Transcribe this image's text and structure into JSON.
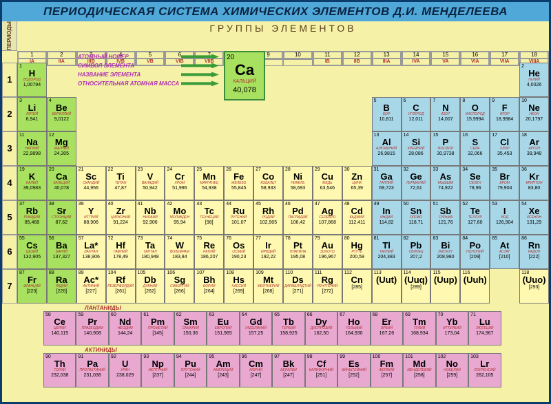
{
  "title": "ПЕРИОДИЧЕСКАЯ СИСТЕМА ХИМИЧЕСКИХ ЭЛЕМЕНТОВ Д.И. МЕНДЕЛЕЕВА",
  "subtitle": "ГРУППЫ ЭЛЕМЕНТОВ",
  "periods_label": "ПЕРИОДЫ",
  "columns": [
    "1",
    "2",
    "3",
    "4",
    "5",
    "6",
    "7",
    "8",
    "9",
    "10",
    "11",
    "12",
    "13",
    "14",
    "15",
    "16",
    "17",
    "18"
  ],
  "group_labels": [
    "IA",
    "IIA",
    "IIIB",
    "IVB",
    "VB",
    "VIB",
    "VIIB",
    "VIIIB",
    "",
    "",
    "IB",
    "IIB",
    "IIIA",
    "IVA",
    "VA",
    "VIA",
    "VIIA",
    "VIIIA"
  ],
  "periods": [
    "1",
    "2",
    "3",
    "4",
    "5",
    "6",
    "7"
  ],
  "legend": {
    "atomic_number": "АТОМНЫЙ НОМЕР",
    "symbol": "СИМВОЛ ЭЛЕМЕНТА",
    "name": "НАЗВАНИЕ ЭЛЕМЕНТА",
    "mass": "ОТНОСИТЕЛЬНАЯ АТОМНАЯ МАССА"
  },
  "sample": {
    "num": "20",
    "sym": "Ca",
    "name": "КАЛЬЦИЙ",
    "mass": "40,078"
  },
  "colors": {
    "green": "#a8e060",
    "yellow": "#fff8b0",
    "blue": "#a8d8e8",
    "pink": "#e8a8d0",
    "lgreen": "#c0e880"
  },
  "elements": [
    [
      {
        "n": "1",
        "s": "H",
        "nm": "ВОДОРОД",
        "m": "1,00794",
        "c": "green"
      },
      null,
      null,
      null,
      null,
      null,
      null,
      null,
      null,
      null,
      null,
      null,
      null,
      null,
      null,
      null,
      null,
      {
        "n": "2",
        "s": "He",
        "nm": "ГЕЛИЙ",
        "m": "4,0026",
        "c": "blue"
      }
    ],
    [
      {
        "n": "3",
        "s": "Li",
        "nm": "ЛИТИЙ",
        "m": "6,941",
        "c": "green"
      },
      {
        "n": "4",
        "s": "Be",
        "nm": "БЕРИЛЛИЙ",
        "m": "9,0122",
        "c": "green"
      },
      null,
      null,
      null,
      null,
      null,
      null,
      null,
      null,
      null,
      null,
      {
        "n": "5",
        "s": "B",
        "nm": "БОР",
        "m": "10,811",
        "c": "blue"
      },
      {
        "n": "6",
        "s": "C",
        "nm": "УГЛЕРОД",
        "m": "12,011",
        "c": "blue"
      },
      {
        "n": "7",
        "s": "N",
        "nm": "АЗОТ",
        "m": "14,007",
        "c": "blue"
      },
      {
        "n": "8",
        "s": "O",
        "nm": "КИСЛОРОД",
        "m": "15,9994",
        "c": "blue"
      },
      {
        "n": "9",
        "s": "F",
        "nm": "ФТОР",
        "m": "18,9984",
        "c": "blue"
      },
      {
        "n": "10",
        "s": "Ne",
        "nm": "НЕОН",
        "m": "20,1797",
        "c": "blue"
      }
    ],
    [
      {
        "n": "11",
        "s": "Na",
        "nm": "НАТРИЙ",
        "m": "22,9898",
        "c": "green"
      },
      {
        "n": "12",
        "s": "Mg",
        "nm": "МАГНИЙ",
        "m": "24,305",
        "c": "green"
      },
      null,
      null,
      null,
      null,
      null,
      null,
      null,
      null,
      null,
      null,
      {
        "n": "13",
        "s": "Al",
        "nm": "АЛЮМИНИЙ",
        "m": "26,9815",
        "c": "blue"
      },
      {
        "n": "14",
        "s": "Si",
        "nm": "КРЕМНИЙ",
        "m": "28,086",
        "c": "blue"
      },
      {
        "n": "15",
        "s": "P",
        "nm": "ФОСФОР",
        "m": "30,9738",
        "c": "blue"
      },
      {
        "n": "16",
        "s": "S",
        "nm": "СЕРА",
        "m": "32,066",
        "c": "blue"
      },
      {
        "n": "17",
        "s": "Cl",
        "nm": "ХЛОР",
        "m": "35,453",
        "c": "blue"
      },
      {
        "n": "18",
        "s": "Ar",
        "nm": "АРГОН",
        "m": "39,948",
        "c": "blue"
      }
    ],
    [
      {
        "n": "19",
        "s": "K",
        "nm": "КАЛИЙ",
        "m": "39,0983",
        "c": "green"
      },
      {
        "n": "20",
        "s": "Ca",
        "nm": "КАЛЬЦИЙ",
        "m": "40,078",
        "c": "green"
      },
      {
        "n": "21",
        "s": "Sc",
        "nm": "СКАНДИЙ",
        "m": "44,956",
        "c": "yellow"
      },
      {
        "n": "22",
        "s": "Ti",
        "nm": "ТИТАН",
        "m": "47,87",
        "c": "yellow"
      },
      {
        "n": "23",
        "s": "V",
        "nm": "ВАНАДИЙ",
        "m": "50,942",
        "c": "yellow"
      },
      {
        "n": "24",
        "s": "Cr",
        "nm": "ХРОМ",
        "m": "51,996",
        "c": "yellow"
      },
      {
        "n": "25",
        "s": "Mn",
        "nm": "МАРГАНЕЦ",
        "m": "54,938",
        "c": "yellow"
      },
      {
        "n": "26",
        "s": "Fe",
        "nm": "ЖЕЛЕЗО",
        "m": "55,845",
        "c": "yellow"
      },
      {
        "n": "27",
        "s": "Co",
        "nm": "КОБАЛЬТ",
        "m": "58,933",
        "c": "yellow"
      },
      {
        "n": "28",
        "s": "Ni",
        "nm": "НИКЕЛЬ",
        "m": "58,693",
        "c": "yellow"
      },
      {
        "n": "29",
        "s": "Cu",
        "nm": "МЕДЬ",
        "m": "63,546",
        "c": "yellow"
      },
      {
        "n": "30",
        "s": "Zn",
        "nm": "ЦИНК",
        "m": "65,39",
        "c": "yellow"
      },
      {
        "n": "31",
        "s": "Ga",
        "nm": "ГАЛЛИЙ",
        "m": "69,723",
        "c": "blue"
      },
      {
        "n": "32",
        "s": "Ge",
        "nm": "ГЕРМАНИЙ",
        "m": "72,61",
        "c": "blue"
      },
      {
        "n": "33",
        "s": "As",
        "nm": "МЫШЬЯК",
        "m": "74,922",
        "c": "blue"
      },
      {
        "n": "34",
        "s": "Se",
        "nm": "СЕЛЕН",
        "m": "78,96",
        "c": "blue"
      },
      {
        "n": "35",
        "s": "Br",
        "nm": "БРОМ",
        "m": "79,904",
        "c": "blue"
      },
      {
        "n": "36",
        "s": "Kr",
        "nm": "КРИПТОН",
        "m": "83,80",
        "c": "blue"
      }
    ],
    [
      {
        "n": "37",
        "s": "Rb",
        "nm": "РУБИДИЙ",
        "m": "85,468",
        "c": "green"
      },
      {
        "n": "38",
        "s": "Sr",
        "nm": "СТРОНЦИЙ",
        "m": "87,62",
        "c": "green"
      },
      {
        "n": "39",
        "s": "Y",
        "nm": "ИТТРИЙ",
        "m": "88,906",
        "c": "yellow"
      },
      {
        "n": "40",
        "s": "Zr",
        "nm": "ЦИРКОНИЙ",
        "m": "91,224",
        "c": "yellow"
      },
      {
        "n": "41",
        "s": "Nb",
        "nm": "НИОБИЙ",
        "m": "92,906",
        "c": "yellow"
      },
      {
        "n": "42",
        "s": "Mo",
        "nm": "МОЛИБДЕН",
        "m": "95,94",
        "c": "yellow"
      },
      {
        "n": "43",
        "s": "Tc",
        "nm": "ТЕХНЕЦИЙ",
        "m": "[98]",
        "c": "yellow"
      },
      {
        "n": "44",
        "s": "Ru",
        "nm": "РУТЕНИЙ",
        "m": "101,07",
        "c": "yellow"
      },
      {
        "n": "45",
        "s": "Rh",
        "nm": "РОДИЙ",
        "m": "102,905",
        "c": "yellow"
      },
      {
        "n": "46",
        "s": "Pd",
        "nm": "ПАЛЛАДИЙ",
        "m": "106,42",
        "c": "yellow"
      },
      {
        "n": "47",
        "s": "Ag",
        "nm": "СЕРЕБРО",
        "m": "107,868",
        "c": "yellow"
      },
      {
        "n": "48",
        "s": "Cd",
        "nm": "КАДМИЙ",
        "m": "112,411",
        "c": "yellow"
      },
      {
        "n": "49",
        "s": "In",
        "nm": "ИНДИЙ",
        "m": "114,82",
        "c": "blue"
      },
      {
        "n": "50",
        "s": "Sn",
        "nm": "ОЛОВО",
        "m": "118,71",
        "c": "blue"
      },
      {
        "n": "51",
        "s": "Sb",
        "nm": "СУРЬМА",
        "m": "121,76",
        "c": "blue"
      },
      {
        "n": "52",
        "s": "Te",
        "nm": "ТЕЛЛУР",
        "m": "127,60",
        "c": "blue"
      },
      {
        "n": "53",
        "s": "I",
        "nm": "ЙОД",
        "m": "126,904",
        "c": "blue"
      },
      {
        "n": "54",
        "s": "Xe",
        "nm": "КСЕНОН",
        "m": "131,29",
        "c": "blue"
      }
    ],
    [
      {
        "n": "55",
        "s": "Cs",
        "nm": "ЦЕЗИЙ",
        "m": "132,905",
        "c": "green"
      },
      {
        "n": "56",
        "s": "Ba",
        "nm": "БАРИЙ",
        "m": "137,327",
        "c": "green"
      },
      {
        "n": "57",
        "s": "La*",
        "nm": "ЛАНТАН",
        "m": "138,906",
        "c": "yellow"
      },
      {
        "n": "72",
        "s": "Hf",
        "nm": "ГАФНИЙ",
        "m": "178,49",
        "c": "yellow"
      },
      {
        "n": "73",
        "s": "Ta",
        "nm": "ТАНТАЛ",
        "m": "180,948",
        "c": "yellow"
      },
      {
        "n": "74",
        "s": "W",
        "nm": "ВОЛЬФРАМ",
        "m": "183,84",
        "c": "yellow"
      },
      {
        "n": "75",
        "s": "Re",
        "nm": "РЕНИЙ",
        "m": "186,207",
        "c": "yellow"
      },
      {
        "n": "76",
        "s": "Os",
        "nm": "ОСМИЙ",
        "m": "190,23",
        "c": "yellow"
      },
      {
        "n": "77",
        "s": "Ir",
        "nm": "ИРИДИЙ",
        "m": "192,22",
        "c": "yellow"
      },
      {
        "n": "78",
        "s": "Pt",
        "nm": "ПЛАТИНА",
        "m": "195,08",
        "c": "yellow"
      },
      {
        "n": "79",
        "s": "Au",
        "nm": "ЗОЛОТО",
        "m": "196,967",
        "c": "yellow"
      },
      {
        "n": "80",
        "s": "Hg",
        "nm": "РТУТЬ",
        "m": "200,59",
        "c": "yellow"
      },
      {
        "n": "81",
        "s": "Tl",
        "nm": "ТАЛЛИЙ",
        "m": "204,383",
        "c": "blue"
      },
      {
        "n": "82",
        "s": "Pb",
        "nm": "СВИНЕЦ",
        "m": "207,2",
        "c": "blue"
      },
      {
        "n": "83",
        "s": "Bi",
        "nm": "ВИСМУТ",
        "m": "208,980",
        "c": "blue"
      },
      {
        "n": "84",
        "s": "Po",
        "nm": "ПОЛОНИЙ",
        "m": "[209]",
        "c": "blue"
      },
      {
        "n": "85",
        "s": "At",
        "nm": "АСТАТ",
        "m": "[210]",
        "c": "blue"
      },
      {
        "n": "86",
        "s": "Rn",
        "nm": "РАДОН",
        "m": "[222]",
        "c": "blue"
      }
    ],
    [
      {
        "n": "87",
        "s": "Fr",
        "nm": "ФРАНЦИЙ",
        "m": "[223]",
        "c": "green"
      },
      {
        "n": "88",
        "s": "Ra",
        "nm": "РАДИЙ",
        "m": "[226]",
        "c": "green"
      },
      {
        "n": "89",
        "s": "Ac*",
        "nm": "АКТИНИЙ",
        "m": "[227]",
        "c": "yellow"
      },
      {
        "n": "104",
        "s": "Rf",
        "nm": "РЕЗЕРФОРДИЙ",
        "m": "[261]",
        "c": "yellow"
      },
      {
        "n": "105",
        "s": "Db",
        "nm": "ДУБНИЙ",
        "m": "[262]",
        "c": "yellow"
      },
      {
        "n": "106",
        "s": "Sg",
        "nm": "СИБОРГИЙ",
        "m": "[266]",
        "c": "yellow"
      },
      {
        "n": "107",
        "s": "Bh",
        "nm": "БОРИЙ",
        "m": "[264]",
        "c": "yellow"
      },
      {
        "n": "108",
        "s": "Hs",
        "nm": "ХАССИЙ",
        "m": "[269]",
        "c": "yellow"
      },
      {
        "n": "109",
        "s": "Mt",
        "nm": "МЕЙТНЕРИЙ",
        "m": "[268]",
        "c": "yellow"
      },
      {
        "n": "110",
        "s": "Ds",
        "nm": "ДАРМШТАДТИЙ",
        "m": "[271]",
        "c": "yellow"
      },
      {
        "n": "111",
        "s": "Rg",
        "nm": "РЕНТГЕНИЙ",
        "m": "[272]",
        "c": "yellow"
      },
      {
        "n": "112",
        "s": "Cn",
        "nm": "",
        "m": "[285]",
        "c": "yellow"
      },
      {
        "n": "113",
        "s": "(Uut)",
        "nm": "",
        "m": "",
        "c": "yellow"
      },
      {
        "n": "114",
        "s": "(Uuq)",
        "nm": "",
        "m": "[289]",
        "c": "yellow"
      },
      {
        "n": "115",
        "s": "(Uup)",
        "nm": "",
        "m": "",
        "c": "yellow"
      },
      {
        "n": "116",
        "s": "(Uuh)",
        "nm": "",
        "m": "",
        "c": "yellow"
      },
      null,
      {
        "n": "118",
        "s": "(Uuo)",
        "nm": "",
        "m": "[293]",
        "c": "yellow"
      }
    ]
  ],
  "lanthanides_label": "ЛАНТАНИДЫ",
  "lanthanides": [
    {
      "n": "58",
      "s": "Ce",
      "nm": "ЦЕРИЙ",
      "m": "140,115"
    },
    {
      "n": "59",
      "s": "Pr",
      "nm": "ПРАЗЕОДИМ",
      "m": "140,908"
    },
    {
      "n": "60",
      "s": "Nd",
      "nm": "НЕОДИМ",
      "m": "144,24"
    },
    {
      "n": "61",
      "s": "Pm",
      "nm": "ПРОМЕТИЙ",
      "m": "[145]"
    },
    {
      "n": "62",
      "s": "Sm",
      "nm": "САМАРИЙ",
      "m": "150,36"
    },
    {
      "n": "63",
      "s": "Eu",
      "nm": "ЕВРОПИЙ",
      "m": "151,965"
    },
    {
      "n": "64",
      "s": "Gd",
      "nm": "ГАДОЛИНИЙ",
      "m": "157,25"
    },
    {
      "n": "65",
      "s": "Tb",
      "nm": "ТЕРБИЙ",
      "m": "158,925"
    },
    {
      "n": "66",
      "s": "Dy",
      "nm": "ДИСПРОЗИЙ",
      "m": "162,50"
    },
    {
      "n": "67",
      "s": "Ho",
      "nm": "ГОЛЬМИЙ",
      "m": "164,930"
    },
    {
      "n": "68",
      "s": "Er",
      "nm": "ЭРБИЙ",
      "m": "167,26"
    },
    {
      "n": "69",
      "s": "Tm",
      "nm": "ТУЛИЙ",
      "m": "168,934"
    },
    {
      "n": "70",
      "s": "Yb",
      "nm": "ИТТЕРБИЙ",
      "m": "173,04"
    },
    {
      "n": "71",
      "s": "Lu",
      "nm": "ЛЮТЕЦИЙ",
      "m": "174,967"
    }
  ],
  "actinides_label": "АКТИНИДЫ",
  "actinides": [
    {
      "n": "90",
      "s": "Th",
      "nm": "ТОРИЙ",
      "m": "232,038"
    },
    {
      "n": "91",
      "s": "Pa",
      "nm": "ПРОТАКТИНИЙ",
      "m": "231,036"
    },
    {
      "n": "92",
      "s": "U",
      "nm": "УРАН",
      "m": "238,029"
    },
    {
      "n": "93",
      "s": "Np",
      "nm": "НЕПТУНИЙ",
      "m": "[237]"
    },
    {
      "n": "94",
      "s": "Pu",
      "nm": "ПЛУТОНИЙ",
      "m": "[244]"
    },
    {
      "n": "95",
      "s": "Am",
      "nm": "АМЕРИЦИЙ",
      "m": "[243]"
    },
    {
      "n": "96",
      "s": "Cm",
      "nm": "КЮРИЙ",
      "m": "[247]"
    },
    {
      "n": "97",
      "s": "Bk",
      "nm": "БЕРКЛИЙ",
      "m": "[247]"
    },
    {
      "n": "98",
      "s": "Cf",
      "nm": "КАЛИФОРНИЙ",
      "m": "[251]"
    },
    {
      "n": "99",
      "s": "Es",
      "nm": "ЭЙНШТЕЙНИЙ",
      "m": "[252]"
    },
    {
      "n": "100",
      "s": "Fm",
      "nm": "ФЕРМИЙ",
      "m": "[257]"
    },
    {
      "n": "101",
      "s": "Md",
      "nm": "МЕНДЕЛЕВИЙ",
      "m": "[258]"
    },
    {
      "n": "102",
      "s": "No",
      "nm": "НОБЕЛИЙ",
      "m": "[259]"
    },
    {
      "n": "103",
      "s": "Lr",
      "nm": "ЛОУРЕНСИЙ",
      "m": "262,105"
    }
  ]
}
